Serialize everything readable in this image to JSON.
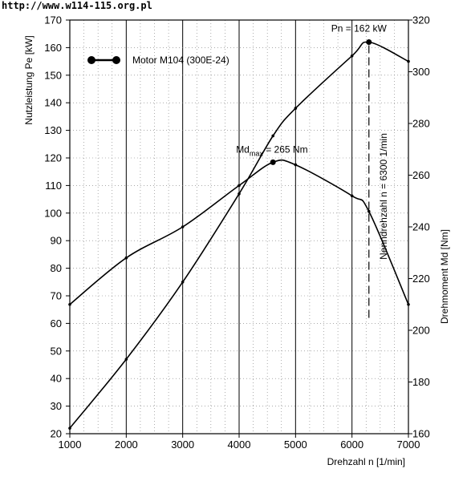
{
  "watermark": "http://www.w114-115.org.pl",
  "chart_data": {
    "type": "line",
    "title": "",
    "xlabel": "Drehzahl n [1/min]",
    "ylabel": "Nutzleistung Pe [kW]",
    "y2label": "Drehmoment Md [Nm]",
    "xlim": [
      1000,
      7000
    ],
    "ylim": [
      20,
      170
    ],
    "y2lim": [
      160,
      320
    ],
    "x_ticks": [
      1000,
      2000,
      3000,
      4000,
      5000,
      6000,
      7000
    ],
    "x_tick_labels": [
      "1000",
      "2000",
      "3000",
      "4000",
      "5000",
      "6000",
      "7000"
    ],
    "y_ticks": [
      20,
      30,
      40,
      50,
      60,
      70,
      80,
      90,
      100,
      110,
      120,
      130,
      140,
      150,
      160,
      170
    ],
    "y_tick_labels": [
      "20",
      "30",
      "40",
      "50",
      "60",
      "70",
      "80",
      "90",
      "100",
      "110",
      "120",
      "130",
      "140",
      "150",
      "160",
      "170"
    ],
    "y2_ticks": [
      160,
      180,
      200,
      220,
      240,
      260,
      280,
      300,
      320
    ],
    "y2_tick_labels": [
      "160",
      "180",
      "200",
      "220",
      "240",
      "260",
      "280",
      "300",
      "320"
    ],
    "grid": true,
    "legend_position": "top-left",
    "legend_label": "Motor M104 (300E-24)",
    "series": [
      {
        "key": "power",
        "axis": "left",
        "x": [
          1000,
          2000,
          3000,
          4000,
          4600,
          5000,
          6000,
          6300,
          7000
        ],
        "y": [
          22,
          47,
          75,
          107,
          128,
          138,
          157,
          162,
          155
        ]
      },
      {
        "key": "torque",
        "axis": "right",
        "x": [
          1000,
          2000,
          3000,
          4000,
          4600,
          5000,
          6000,
          6300,
          7000
        ],
        "y": [
          210,
          228,
          240,
          256,
          265,
          264,
          252,
          246,
          210
        ]
      }
    ],
    "annotations": {
      "pn": {
        "text": "Pn = 162 kW",
        "x": 6300,
        "y": 162
      },
      "md_prefix": "Md",
      "md_sub": "max",
      "md_suffix": " = 265 Nm",
      "md_point": {
        "x": 4600,
        "y": 265
      },
      "nenndrehzahl": {
        "text": "Nenndrehzahl  n = 6300 1/min",
        "x": 6300
      }
    },
    "colors": {
      "line": "#000000",
      "grid": "#000000",
      "background": "#ffffff"
    }
  }
}
